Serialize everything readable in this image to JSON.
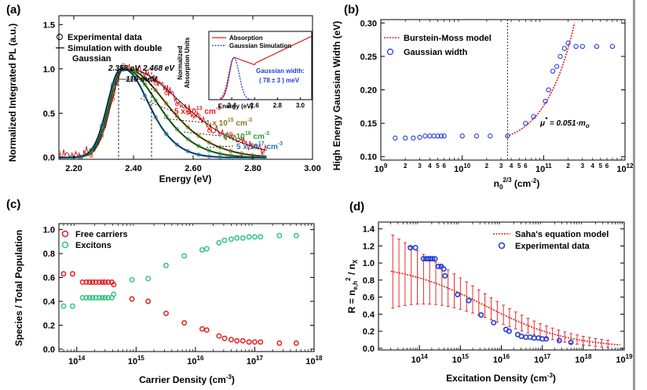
{
  "chart_data": [
    {
      "panel": "(a)",
      "type": "line",
      "xlabel": "Energy (eV)",
      "ylabel": "Normalized Integrated PL (a.u.)",
      "xlim": [
        2.15,
        3.0
      ],
      "ylim": [
        -0.02,
        1.6
      ],
      "xticks": [
        "2.20",
        "2.40",
        "2.60",
        "2.80",
        "3.00"
      ],
      "yticks": [
        "0.0",
        "0.5",
        "1.0",
        "1.5"
      ],
      "legend": [
        "Experimental data",
        "Simulation with double",
        "Gaussian"
      ],
      "annotations": {
        "peak1": "2.358 eV",
        "peak2": "2.468 eV",
        "separation": "110 meV"
      },
      "series": [
        {
          "label_base": "5 x 10",
          "label_exp": "13",
          "label_unit": "cm",
          "label_unit_exp": "-3",
          "color": "#e31a1c",
          "center": 2.37,
          "width_low": 0.045,
          "width_high": 0.23,
          "noise": true
        },
        {
          "label_base": "1 x 10",
          "label_exp": "15",
          "label_unit": "cm",
          "label_unit_exp": "-3",
          "color": "#8c7a1a",
          "center": 2.365,
          "width_low": 0.045,
          "width_high": 0.17,
          "noise": false
        },
        {
          "label_base": "6 x 10",
          "label_exp": "16",
          "label_unit": "cm",
          "label_unit_exp": "-3",
          "color": "#33a02c",
          "center": 2.36,
          "width_low": 0.045,
          "width_high": 0.14,
          "noise": false
        },
        {
          "label_base": "5 x 10",
          "label_exp": "17",
          "label_unit": "cm",
          "label_unit_exp": "-3",
          "color": "#1f78b4",
          "center": 2.358,
          "width_low": 0.045,
          "width_high": 0.105,
          "noise": false
        }
      ],
      "inset": {
        "xlabel": "Energy (eV)",
        "ylabel": [
          "Normalized",
          "Absorption Units"
        ],
        "xlim": [
          2.2,
          3.1
        ],
        "ylim": [
          0,
          1.0
        ],
        "xticks": [
          "2.4",
          "2.6",
          "2.8",
          "3.0"
        ],
        "legend": [
          "Absorption",
          "Gaussian Simulation"
        ],
        "note": [
          "Gaussian width:",
          "( 78 ± 3 ) meV"
        ]
      }
    },
    {
      "panel": "(b)",
      "type": "scatter",
      "xlabel": "n",
      "xlabel_sub": "0",
      "xlabel_sup": "2/3",
      "xlabel_unit": "(cm",
      "xlabel_unit_sup": "-2",
      "xlabel_close": ")",
      "ylabel": "High Energy Gaussian Width (eV)",
      "xscale": "log",
      "xlim": [
        1000000000.0,
        1000000000000.0
      ],
      "ylim": [
        0.095,
        0.305
      ],
      "yticks": [
        "0.10",
        "0.15",
        "0.20",
        "0.25",
        "0.30"
      ],
      "xticks_base": "10",
      "xticks_exp": [
        "9",
        "10",
        "11",
        "12"
      ],
      "legend": [
        "Burstein-Moss model",
        "Gaussian width"
      ],
      "annotation": {
        "text": "μ",
        "sup": "*",
        "rest": " = 0.051·m",
        "sub": "o"
      },
      "vline_x": 36000000000.0,
      "points": [
        [
          1500000000.0,
          0.128
        ],
        [
          2000000000.0,
          0.128
        ],
        [
          2500000000.0,
          0.128
        ],
        [
          3000000000.0,
          0.129
        ],
        [
          3500000000.0,
          0.131
        ],
        [
          4000000000.0,
          0.131
        ],
        [
          4500000000.0,
          0.131
        ],
        [
          5000000000.0,
          0.131
        ],
        [
          5500000000.0,
          0.131
        ],
        [
          6000000000.0,
          0.131
        ],
        [
          10000000000.0,
          0.131
        ],
        [
          15000000000.0,
          0.131
        ],
        [
          22000000000.0,
          0.131
        ],
        [
          36000000000.0,
          0.131
        ],
        [
          60000000000.0,
          0.15
        ],
        [
          75000000000.0,
          0.16
        ],
        [
          105000000000.0,
          0.183
        ],
        [
          115000000000.0,
          0.2
        ],
        [
          130000000000.0,
          0.228
        ],
        [
          145000000000.0,
          0.235
        ],
        [
          160000000000.0,
          0.25
        ],
        [
          180000000000.0,
          0.262
        ],
        [
          200000000000.0,
          0.27
        ],
        [
          250000000000.0,
          0.265
        ],
        [
          300000000000.0,
          0.265
        ],
        [
          450000000000.0,
          0.265
        ],
        [
          700000000000.0,
          0.265
        ]
      ],
      "model_x_start": 35000000000.0,
      "model_x_end": 240000000000.0
    },
    {
      "panel": "(c)",
      "type": "scatter",
      "xlabel": "Carrier Density (cm",
      "xlabel_sup": "-3",
      "xlabel_close": ")",
      "ylabel": "Species / Total Population",
      "xscale": "log",
      "xlim": [
        50000000000000.0,
        1e+18
      ],
      "ylim": [
        -0.02,
        1.05
      ],
      "yticks": [
        "0.0",
        "0.2",
        "0.4",
        "0.6",
        "0.8",
        "1.0"
      ],
      "xticks_base": "10",
      "xticks_exp": [
        "14",
        "15",
        "16",
        "17",
        "18"
      ],
      "legend": [
        "Free carriers",
        "Excitons"
      ],
      "series": [
        {
          "name": "Free carriers",
          "color": "#e31a1c",
          "points": [
            [
              60000000000000.0,
              0.63
            ],
            [
              85000000000000.0,
              0.63
            ],
            [
              125000000000000.0,
              0.56
            ],
            [
              145000000000000.0,
              0.56
            ],
            [
              165000000000000.0,
              0.56
            ],
            [
              185000000000000.0,
              0.56
            ],
            [
              210000000000000.0,
              0.56
            ],
            [
              240000000000000.0,
              0.56
            ],
            [
              270000000000000.0,
              0.56
            ],
            [
              300000000000000.0,
              0.56
            ],
            [
              340000000000000.0,
              0.56
            ],
            [
              390000000000000.0,
              0.56
            ],
            [
              420000000000000.0,
              0.54
            ],
            [
              850000000000000.0,
              0.42
            ],
            [
              1600000000000000.0,
              0.4
            ],
            [
              3200000000000000.0,
              0.3
            ],
            [
              6500000000000000.0,
              0.22
            ],
            [
              1.3e+16,
              0.17
            ],
            [
              1.55e+16,
              0.16
            ],
            [
              2.5e+16,
              0.11
            ],
            [
              3.1e+16,
              0.09
            ],
            [
              4e+16,
              0.08
            ],
            [
              5e+16,
              0.07
            ],
            [
              6.3e+16,
              0.07
            ],
            [
              8e+16,
              0.06
            ],
            [
              1e+17,
              0.06
            ],
            [
              1.25e+17,
              0.06
            ],
            [
              2.6e+17,
              0.05
            ],
            [
              5e+17,
              0.05
            ]
          ]
        },
        {
          "name": "Excitons",
          "color": "#2ec27e",
          "points": [
            [
              60000000000000.0,
              0.36
            ],
            [
              85000000000000.0,
              0.36
            ],
            [
              125000000000000.0,
              0.43
            ],
            [
              145000000000000.0,
              0.43
            ],
            [
              165000000000000.0,
              0.43
            ],
            [
              185000000000000.0,
              0.43
            ],
            [
              210000000000000.0,
              0.43
            ],
            [
              240000000000000.0,
              0.43
            ],
            [
              270000000000000.0,
              0.43
            ],
            [
              300000000000000.0,
              0.43
            ],
            [
              340000000000000.0,
              0.43
            ],
            [
              390000000000000.0,
              0.43
            ],
            [
              420000000000000.0,
              0.46
            ],
            [
              850000000000000.0,
              0.58
            ],
            [
              1600000000000000.0,
              0.59
            ],
            [
              3200000000000000.0,
              0.7
            ],
            [
              6500000000000000.0,
              0.78
            ],
            [
              1.3e+16,
              0.83
            ],
            [
              1.55e+16,
              0.84
            ],
            [
              2.5e+16,
              0.89
            ],
            [
              3.1e+16,
              0.91
            ],
            [
              4e+16,
              0.92
            ],
            [
              5e+16,
              0.93
            ],
            [
              6.3e+16,
              0.93
            ],
            [
              8e+16,
              0.94
            ],
            [
              1e+17,
              0.94
            ],
            [
              1.25e+17,
              0.94
            ],
            [
              2.6e+17,
              0.95
            ],
            [
              5e+17,
              0.95
            ]
          ]
        }
      ]
    },
    {
      "panel": "(d)",
      "type": "scatter",
      "xlabel": "Excitation Density (cm",
      "xlabel_sup": "-3",
      "xlabel_close": ")",
      "ylabel_main": "R = n",
      "ylabel_sub": "e,h",
      "ylabel_sup": "2",
      "ylabel_rest": " / n",
      "ylabel_sub2": "X",
      "xscale": "log",
      "xlim": [
        10000000000000.0,
        1e+19
      ],
      "ylim": [
        -0.02,
        1.48
      ],
      "yticks": [
        "0.0",
        "0.2",
        "0.4",
        "0.6",
        "0.8",
        "1.0",
        "1.2",
        "1.4"
      ],
      "xticks_base": "10",
      "xticks_exp": [
        "14",
        "15",
        "16",
        "17",
        "18",
        "19"
      ],
      "legend": [
        "Saha's equation model",
        "Experimental data"
      ],
      "points": [
        [
          60000000000000.0,
          1.18
        ],
        [
          80000000000000.0,
          1.18
        ],
        [
          125000000000000.0,
          1.05
        ],
        [
          145000000000000.0,
          1.05
        ],
        [
          165000000000000.0,
          1.05
        ],
        [
          185000000000000.0,
          1.05
        ],
        [
          210000000000000.0,
          1.05
        ],
        [
          240000000000000.0,
          1.05
        ],
        [
          290000000000000.0,
          0.96
        ],
        [
          340000000000000.0,
          0.96
        ],
        [
          390000000000000.0,
          0.93
        ],
        [
          420000000000000.0,
          0.85
        ],
        [
          850000000000000.0,
          0.63
        ],
        [
          1600000000000000.0,
          0.56
        ],
        [
          3200000000000000.0,
          0.39
        ],
        [
          6500000000000000.0,
          0.3
        ],
        [
          1.3e+16,
          0.22
        ],
        [
          1.55e+16,
          0.2
        ],
        [
          2.5e+16,
          0.16
        ],
        [
          3.1e+16,
          0.14
        ],
        [
          4e+16,
          0.13
        ],
        [
          5e+16,
          0.13
        ],
        [
          6.3e+16,
          0.12
        ],
        [
          8e+16,
          0.12
        ],
        [
          1e+17,
          0.11
        ],
        [
          1.25e+17,
          0.11
        ],
        [
          2.6e+17,
          0.09
        ],
        [
          5e+17,
          0.07
        ]
      ]
    }
  ]
}
